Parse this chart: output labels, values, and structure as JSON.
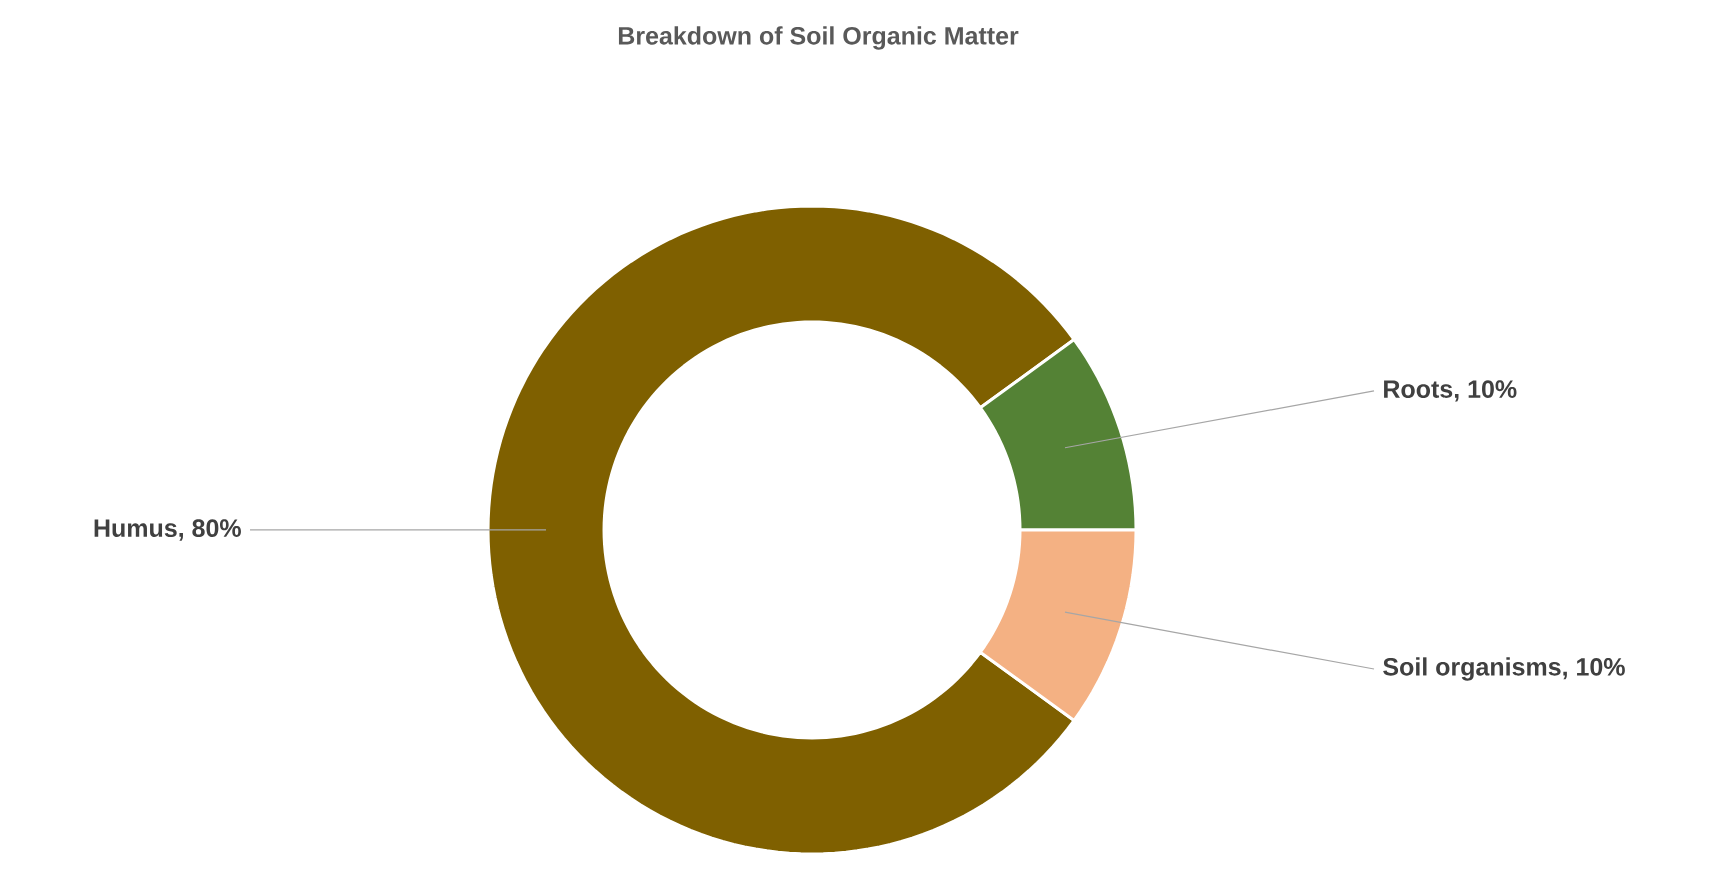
{
  "chart_data": {
    "type": "donut",
    "title": "Breakdown of Soil Organic Matter",
    "categories": [
      "Humus",
      "Roots",
      "Soil organisms"
    ],
    "values": [
      80,
      10,
      10
    ],
    "value_labels": [
      ", 80%",
      ", 10%",
      ", 10%"
    ],
    "colors": [
      "#7f6000",
      "#548235",
      "#f4b183"
    ]
  }
}
